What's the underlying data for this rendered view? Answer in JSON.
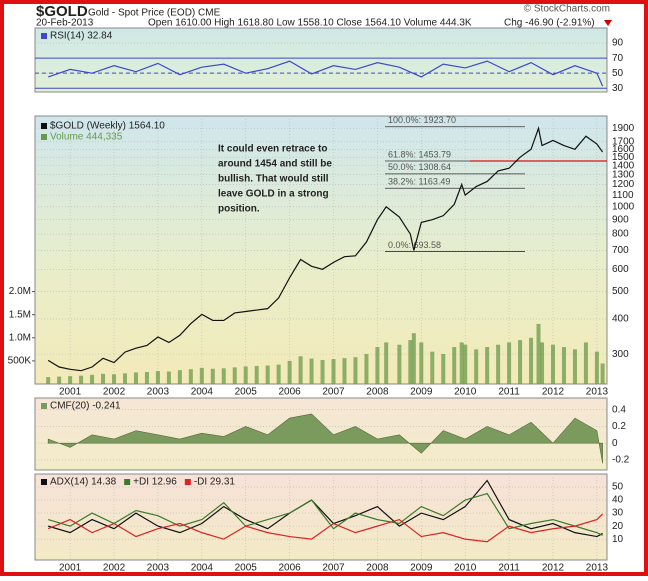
{
  "header": {
    "symbol": "$GOLD",
    "description": "Gold - Spot Price (EOD) CME",
    "date": "20-Feb-2013",
    "quote": "Open 1610.00 High 1618.80 Low 1558.10 Close 1564.10 Volume 444.3K",
    "change": "Chg -46.90 (-2.91%)",
    "credit": "© StockCharts.com"
  },
  "chart_data": [
    {
      "type": "line",
      "x": [
        2000.5,
        2001,
        2001.5,
        2002,
        2002.5,
        2003,
        2003.5,
        2004,
        2004.5,
        2005,
        2005.5,
        2006,
        2006.5,
        2007,
        2007.5,
        2008,
        2008.5,
        2009,
        2009.5,
        2010,
        2010.5,
        2011,
        2011.5,
        2012,
        2012.5,
        2013,
        2013.13
      ],
      "xlim": [
        2000.2,
        2013.23
      ],
      "ylim": [
        25,
        110
      ],
      "yticks": [
        30,
        50,
        70,
        90
      ],
      "levels": [
        30,
        50,
        70
      ],
      "series": [
        {
          "name": "RSI(14) 32.84",
          "color": "#3f48cc",
          "values": [
            45,
            55,
            50,
            60,
            52,
            63,
            48,
            58,
            62,
            50,
            56,
            66,
            49,
            60,
            55,
            64,
            58,
            45,
            62,
            57,
            66,
            52,
            64,
            48,
            60,
            50,
            32.84
          ]
        }
      ]
    },
    {
      "type": "line",
      "scale": "log",
      "x": [
        2000.5,
        2000.75,
        2001,
        2001.25,
        2001.5,
        2001.75,
        2002,
        2002.25,
        2002.5,
        2002.75,
        2003,
        2003.25,
        2003.5,
        2003.75,
        2004,
        2004.25,
        2004.5,
        2004.75,
        2005,
        2005.25,
        2005.5,
        2005.75,
        2006,
        2006.25,
        2006.5,
        2006.75,
        2007,
        2007.25,
        2007.5,
        2007.75,
        2008,
        2008.2,
        2008.5,
        2008.75,
        2008.83,
        2009,
        2009.25,
        2009.5,
        2009.75,
        2009.92,
        2010,
        2010.25,
        2010.5,
        2010.75,
        2011,
        2011.25,
        2011.5,
        2011.67,
        2011.75,
        2012,
        2012.25,
        2012.5,
        2012.75,
        2013,
        2013.13
      ],
      "xlim": [
        2000.2,
        2013.23
      ],
      "xticks": [
        2001,
        2002,
        2003,
        2004,
        2005,
        2006,
        2007,
        2008,
        2009,
        2010,
        2011,
        2012,
        2013
      ],
      "ylim": [
        235,
        2100
      ],
      "yticks": [
        300,
        400,
        500,
        600,
        700,
        800,
        900,
        1000,
        1100,
        1200,
        1300,
        1400,
        1500,
        1600,
        1700,
        1900
      ],
      "y2lim": [
        0,
        5800000
      ],
      "y2ticks": [
        {
          "value": 500000,
          "label": "500K"
        },
        {
          "value": 1000000,
          "label": "1.0M"
        },
        {
          "value": 1500000,
          "label": "1.5M"
        },
        {
          "value": 2000000,
          "label": "2.0M"
        }
      ],
      "series": [
        {
          "name": "$GOLD (Weekly) 1564.10",
          "color": "#111111",
          "values": [
            285,
            270,
            265,
            262,
            270,
            290,
            280,
            305,
            315,
            322,
            345,
            330,
            350,
            385,
            415,
            395,
            395,
            420,
            425,
            430,
            435,
            475,
            560,
            650,
            615,
            600,
            635,
            665,
            670,
            750,
            900,
            1000,
            920,
            800,
            700,
            880,
            900,
            930,
            1020,
            1200,
            1100,
            1180,
            1230,
            1340,
            1370,
            1500,
            1600,
            1900,
            1650,
            1720,
            1650,
            1600,
            1780,
            1670,
            1564.1
          ]
        },
        {
          "name": "Volume 444,335",
          "type": "bar",
          "axis": "y2",
          "color": "#6a9a4a",
          "values": [
            150000,
            160000,
            170000,
            180000,
            200000,
            220000,
            210000,
            230000,
            250000,
            260000,
            280000,
            270000,
            300000,
            320000,
            350000,
            330000,
            340000,
            360000,
            380000,
            390000,
            400000,
            420000,
            500000,
            600000,
            550000,
            520000,
            540000,
            560000,
            580000,
            650000,
            800000,
            900000,
            850000,
            950000,
            1100000,
            900000,
            700000,
            650000,
            800000,
            900000,
            850000,
            750000,
            800000,
            850000,
            900000,
            950000,
            1000000,
            1300000,
            900000,
            850000,
            800000,
            750000,
            900000,
            700000,
            444335
          ]
        }
      ],
      "annotation": [
        "It could even retrace to",
        "around 1454 and still be",
        "bullish. That would still",
        "leave GOLD in a strong",
        "position."
      ],
      "fib_levels": [
        {
          "label": "100.0%: 1923.70",
          "value": 1923.7
        },
        {
          "label": "61.8%: 1453.79",
          "value": 1453.79
        },
        {
          "label": "50.0%: 1308.64",
          "value": 1308.64
        },
        {
          "label": "38.2%: 1163.49",
          "value": 1163.49
        },
        {
          "label": "0.0%: 693.58",
          "value": 693.58
        }
      ],
      "reference_color": "#dd1111"
    },
    {
      "type": "area",
      "x": [
        2000.5,
        2001,
        2001.5,
        2002,
        2002.5,
        2003,
        2003.5,
        2004,
        2004.5,
        2005,
        2005.5,
        2006,
        2006.5,
        2007,
        2007.5,
        2008,
        2008.5,
        2009,
        2009.5,
        2010,
        2010.5,
        2011,
        2011.5,
        2012,
        2012.5,
        2013,
        2013.13
      ],
      "xlim": [
        2000.2,
        2013.23
      ],
      "ylim": [
        -0.32,
        0.54
      ],
      "yticks": [
        -0.2,
        0.0,
        0.2,
        0.4
      ],
      "series": [
        {
          "name": "CMF(20) -0.241",
          "color": "#7b9a5e",
          "values": [
            0.05,
            -0.05,
            0.1,
            0.05,
            0.15,
            0.1,
            0.05,
            0.12,
            0.08,
            0.2,
            0.1,
            0.3,
            0.35,
            0.1,
            0.2,
            0.05,
            0.1,
            -0.12,
            0.15,
            0.05,
            0.2,
            0.1,
            0.25,
            0.0,
            0.3,
            0.15,
            -0.241
          ]
        }
      ]
    },
    {
      "type": "line",
      "x": [
        2000.5,
        2001,
        2001.5,
        2002,
        2002.5,
        2003,
        2003.5,
        2004,
        2004.5,
        2005,
        2005.5,
        2006,
        2006.5,
        2007,
        2007.5,
        2008,
        2008.5,
        2009,
        2009.5,
        2010,
        2010.5,
        2011,
        2011.5,
        2012,
        2012.5,
        2013,
        2013.13
      ],
      "xlim": [
        2000.2,
        2013.23
      ],
      "xticks": [
        2001,
        2002,
        2003,
        2004,
        2005,
        2006,
        2007,
        2008,
        2009,
        2010,
        2011,
        2012,
        2013
      ],
      "ylim": [
        -6,
        60
      ],
      "yticks": [
        10,
        20,
        30,
        40,
        50
      ],
      "series": [
        {
          "name": "ADX(14) 14.38",
          "color": "#111111",
          "values": [
            20,
            15,
            25,
            18,
            30,
            20,
            15,
            22,
            35,
            25,
            18,
            30,
            40,
            22,
            28,
            35,
            20,
            30,
            25,
            35,
            55,
            25,
            18,
            22,
            15,
            12,
            14.38
          ]
        },
        {
          "name": "+DI 12.96",
          "color": "#3a7a2a",
          "values": [
            25,
            20,
            30,
            22,
            32,
            28,
            20,
            25,
            38,
            20,
            25,
            30,
            40,
            18,
            30,
            25,
            22,
            35,
            28,
            40,
            45,
            18,
            22,
            25,
            20,
            15,
            12.96
          ]
        },
        {
          "name": "-DI 29.31",
          "color": "#dd2222",
          "values": [
            18,
            25,
            15,
            22,
            12,
            18,
            22,
            15,
            10,
            20,
            15,
            12,
            10,
            22,
            15,
            20,
            25,
            12,
            15,
            10,
            8,
            20,
            15,
            18,
            20,
            25,
            29.31
          ]
        }
      ]
    }
  ]
}
